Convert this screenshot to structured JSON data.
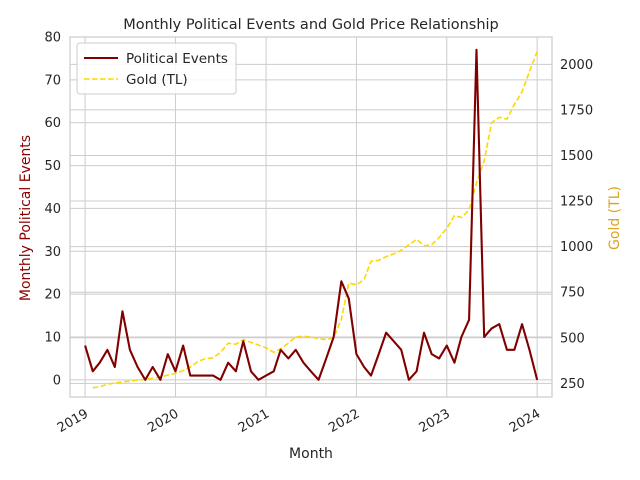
{
  "chart_data": {
    "type": "line",
    "title": "Monthly Political Events and Gold Price Relationship",
    "xlabel": "Month",
    "ylabel_left": "Monthly Political Events",
    "ylabel_right": "Gold (TL)",
    "grid": true,
    "legend_position": "top-left",
    "colors": {
      "events": "#800000",
      "gold": "#FFD700",
      "left_axis_label": "#8B0000",
      "right_axis_label": "#DAA520",
      "grid": "#cccccc",
      "text": "#262626"
    },
    "x_range": [
      "2018-11-01",
      "2024-03-01"
    ],
    "x_ticks": [
      {
        "date": "2019-01-01",
        "label": "2019"
      },
      {
        "date": "2020-01-01",
        "label": "2020"
      },
      {
        "date": "2021-01-01",
        "label": "2021"
      },
      {
        "date": "2022-01-01",
        "label": "2022"
      },
      {
        "date": "2023-01-01",
        "label": "2023"
      },
      {
        "date": "2024-01-01",
        "label": "2024"
      }
    ],
    "ylim_left": [
      -4,
      80
    ],
    "yticks_left": [
      0,
      10,
      20,
      30,
      40,
      50,
      60,
      70,
      80
    ],
    "ylim_right": [
      175,
      2150
    ],
    "yticks_right": [
      250,
      500,
      750,
      1000,
      1250,
      1500,
      1750,
      2000
    ],
    "series": [
      {
        "name": "Political Events",
        "axis": "left",
        "style": "solid",
        "x": [
          "2019-01",
          "2019-02",
          "2019-03",
          "2019-04",
          "2019-05",
          "2019-06",
          "2019-07",
          "2019-08",
          "2019-09",
          "2019-10",
          "2019-11",
          "2019-12",
          "2020-01",
          "2020-02",
          "2020-03",
          "2020-04",
          "2020-05",
          "2020-06",
          "2020-07",
          "2020-08",
          "2020-09",
          "2020-10",
          "2020-11",
          "2020-12",
          "2021-01",
          "2021-02",
          "2021-03",
          "2021-04",
          "2021-05",
          "2021-06",
          "2021-07",
          "2021-08",
          "2021-09",
          "2021-10",
          "2021-11",
          "2021-12",
          "2022-01",
          "2022-02",
          "2022-03",
          "2022-04",
          "2022-05",
          "2022-06",
          "2022-07",
          "2022-08",
          "2022-09",
          "2022-10",
          "2022-11",
          "2022-12",
          "2023-01",
          "2023-02",
          "2023-03",
          "2023-04",
          "2023-05",
          "2023-06",
          "2023-07",
          "2023-08",
          "2023-09",
          "2023-10",
          "2023-11",
          "2023-12",
          "2024-01"
        ],
        "values": [
          8,
          2,
          4,
          7,
          3,
          16,
          7,
          3,
          0,
          3,
          0,
          6,
          2,
          8,
          1,
          1,
          1,
          1,
          0,
          4,
          2,
          9,
          2,
          0,
          1,
          2,
          7,
          5,
          7,
          4,
          2,
          0,
          5,
          10,
          23,
          19,
          6,
          3,
          1,
          6,
          11,
          9,
          7,
          0,
          2,
          11,
          6,
          5,
          8,
          4,
          10,
          14,
          77,
          10,
          12,
          13,
          7,
          7,
          13,
          7,
          0
        ]
      },
      {
        "name": "Gold (TL)",
        "axis": "right",
        "style": "dashed",
        "x": [
          "2019-02",
          "2019-03",
          "2019-04",
          "2019-05",
          "2019-06",
          "2019-07",
          "2019-08",
          "2019-09",
          "2019-10",
          "2019-11",
          "2019-12",
          "2020-01",
          "2020-02",
          "2020-03",
          "2020-04",
          "2020-05",
          "2020-06",
          "2020-07",
          "2020-08",
          "2020-09",
          "2020-10",
          "2020-11",
          "2020-12",
          "2021-01",
          "2021-02",
          "2021-03",
          "2021-04",
          "2021-05",
          "2021-06",
          "2021-07",
          "2021-08",
          "2021-09",
          "2021-10",
          "2021-11",
          "2021-12",
          "2022-01",
          "2022-02",
          "2022-03",
          "2022-04",
          "2022-05",
          "2022-06",
          "2022-07",
          "2022-08",
          "2022-09",
          "2022-10",
          "2022-11",
          "2022-12",
          "2023-01",
          "2023-02",
          "2023-03",
          "2023-04",
          "2023-05",
          "2023-06",
          "2023-07",
          "2023-08",
          "2023-09",
          "2023-10",
          "2023-11",
          "2023-12",
          "2024-01"
        ],
        "values": [
          225,
          232,
          245,
          252,
          258,
          262,
          268,
          272,
          278,
          285,
          295,
          305,
          320,
          340,
          370,
          385,
          390,
          420,
          470,
          465,
          490,
          475,
          460,
          445,
          420,
          440,
          470,
          505,
          508,
          505,
          495,
          490,
          500,
          600,
          800,
          790,
          820,
          920,
          925,
          945,
          960,
          980,
          1010,
          1040,
          1005,
          1010,
          1050,
          1100,
          1170,
          1160,
          1200,
          1350,
          1470,
          1680,
          1710,
          1700,
          1780,
          1850,
          1960,
          2070
        ]
      }
    ]
  }
}
